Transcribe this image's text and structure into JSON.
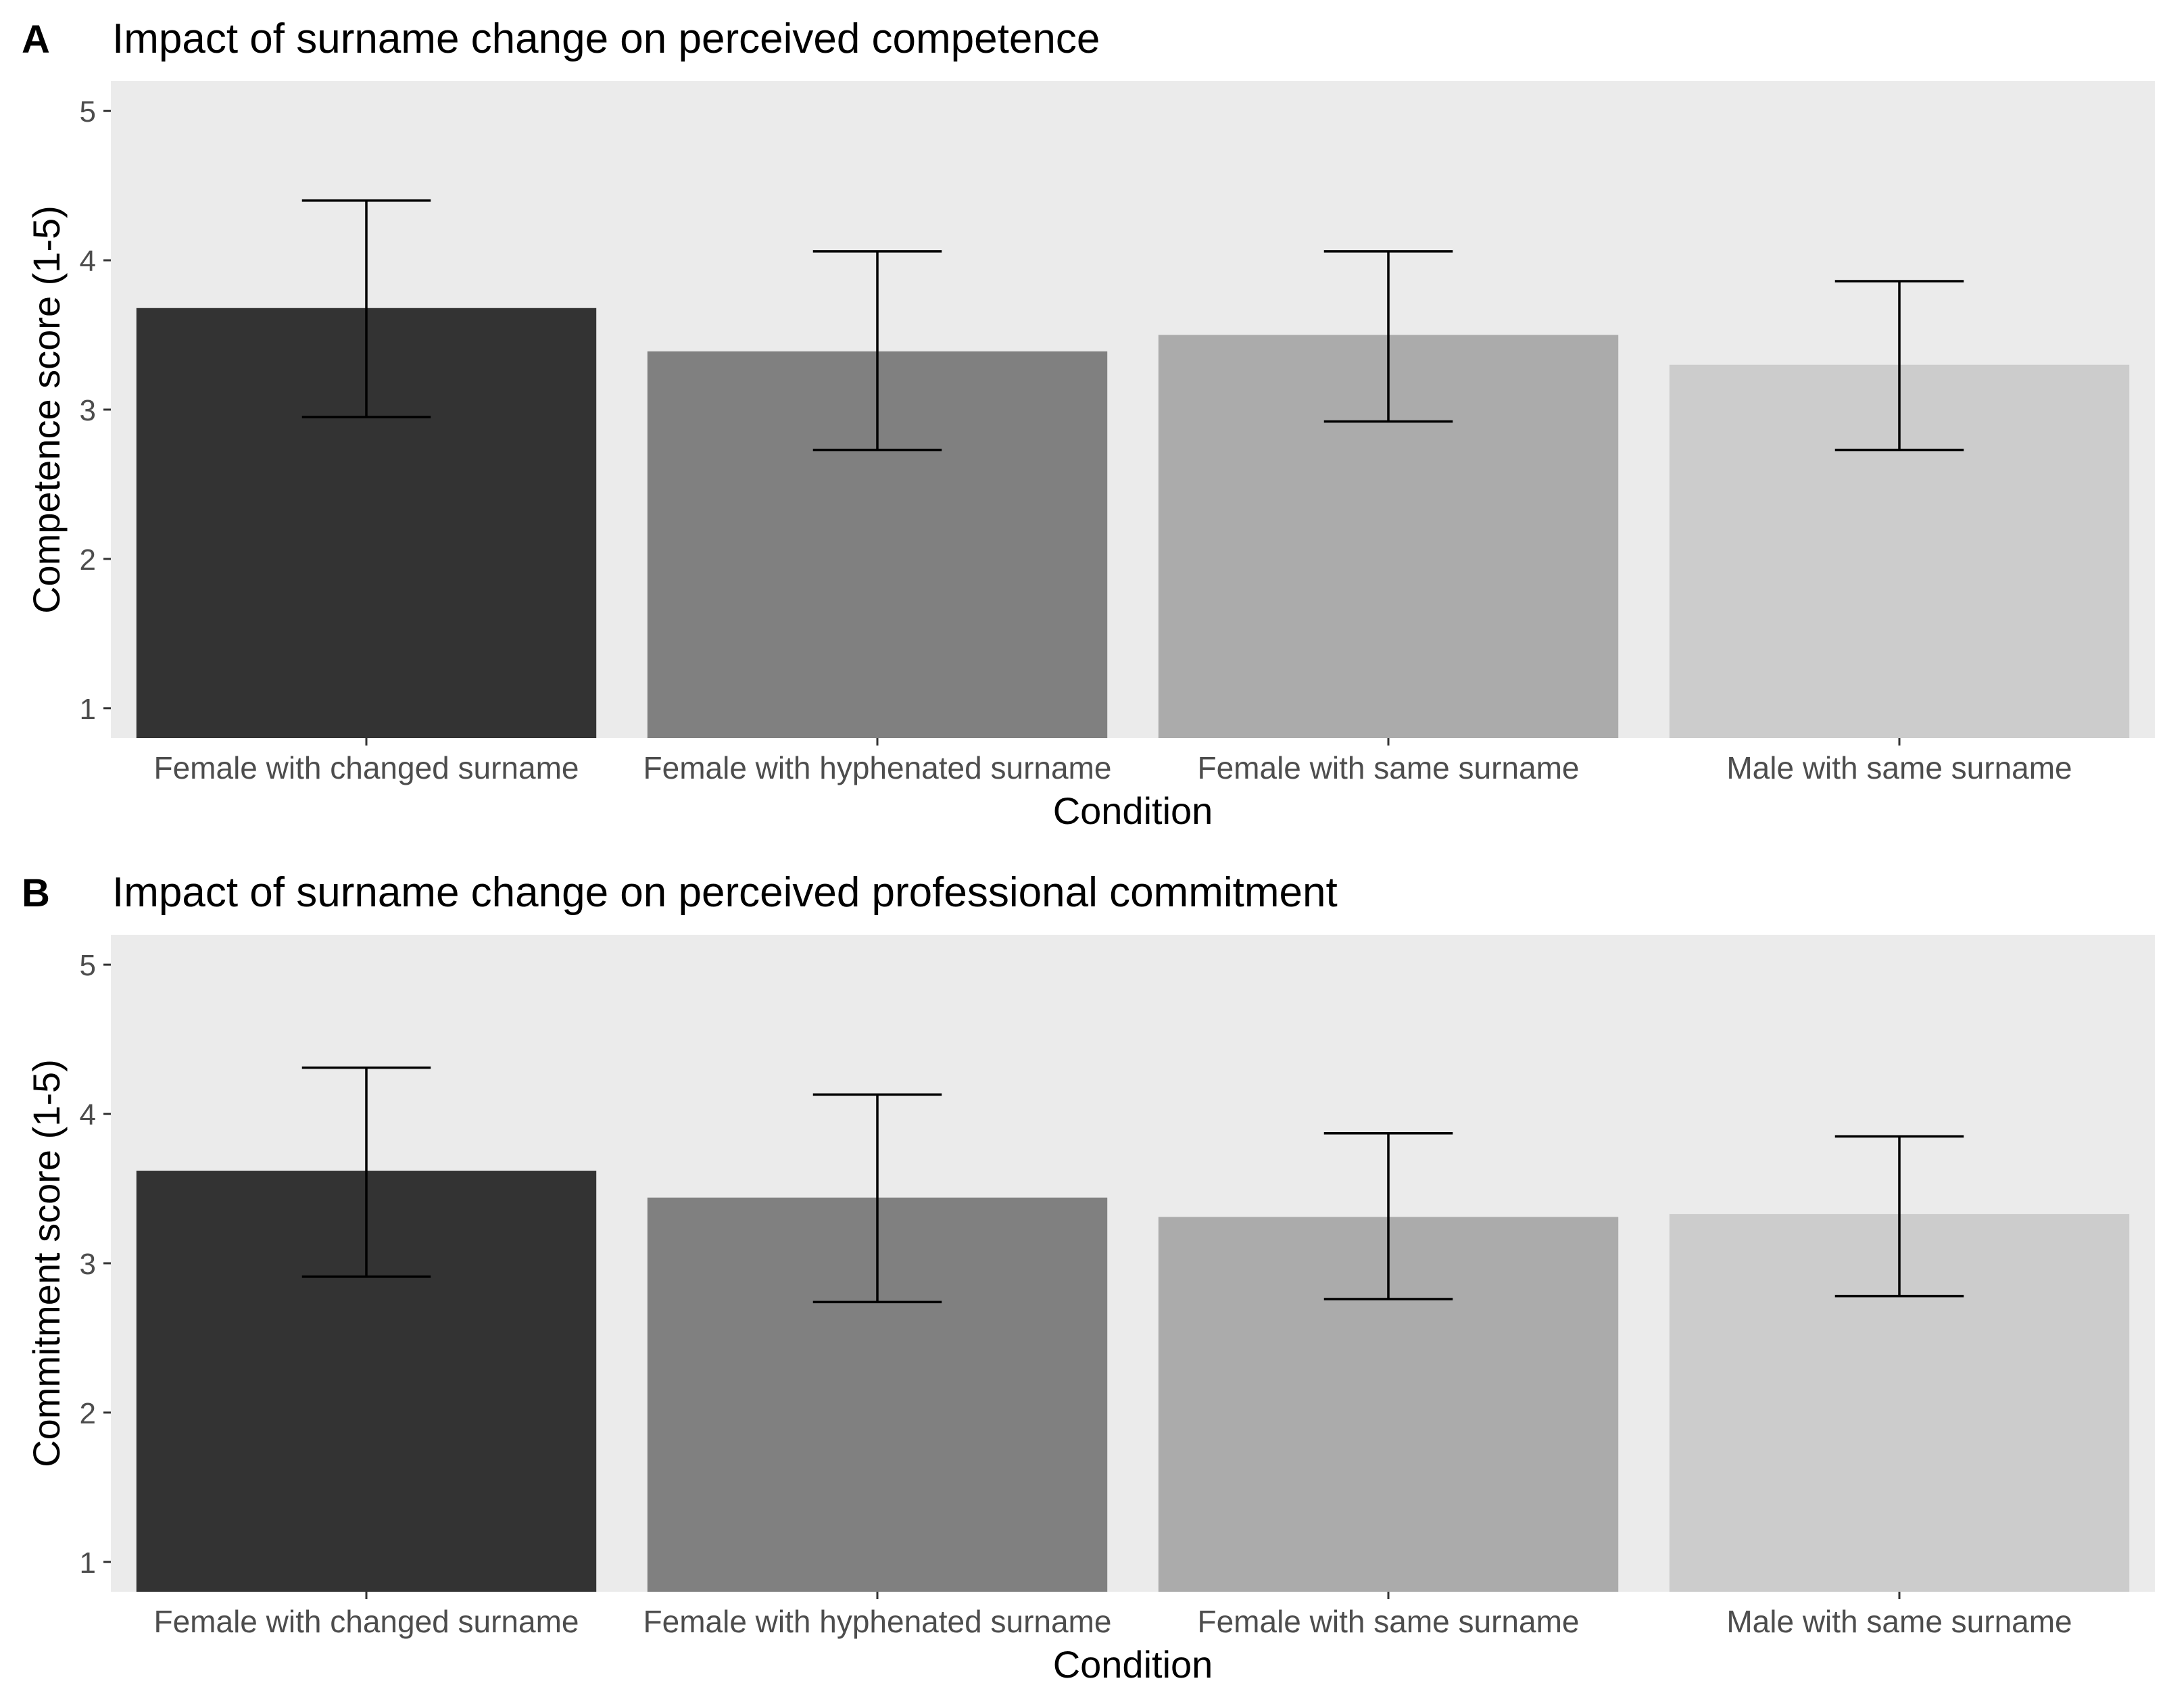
{
  "panels": [
    {
      "letter": "A",
      "title": "Impact of surname change on perceived competence",
      "chart_data": {
        "type": "bar",
        "title": "Impact of surname change on perceived competence",
        "xlabel": "Condition",
        "ylabel": "Competence score (1-5)",
        "categories": [
          "Female with changed surname",
          "Female with hyphenated surname",
          "Female with same surname",
          "Male with same surname"
        ],
        "values": [
          3.68,
          3.39,
          3.5,
          3.3
        ],
        "error_low": [
          2.95,
          2.73,
          2.92,
          2.73
        ],
        "error_high": [
          4.4,
          4.06,
          4.06,
          3.86
        ],
        "ylim": [
          0.8,
          5.2
        ],
        "yticks": [
          1,
          2,
          3,
          4,
          5
        ],
        "grid": false,
        "colors": [
          "#333333",
          "#808080",
          "#ababab",
          "#cccccc"
        ],
        "background": "#ebebeb"
      }
    },
    {
      "letter": "B",
      "title": "Impact of surname change on perceived professional commitment",
      "chart_data": {
        "type": "bar",
        "title": "Impact of surname change on perceived professional commitment",
        "xlabel": "Condition",
        "ylabel": "Commitment score (1-5)",
        "categories": [
          "Female with changed surname",
          "Female with hyphenated surname",
          "Female with same surname",
          "Male with same surname"
        ],
        "values": [
          3.62,
          3.44,
          3.31,
          3.33
        ],
        "error_low": [
          2.91,
          2.74,
          2.76,
          2.78
        ],
        "error_high": [
          4.31,
          4.13,
          3.87,
          3.85
        ],
        "ylim": [
          0.8,
          5.2
        ],
        "yticks": [
          1,
          2,
          3,
          4,
          5
        ],
        "grid": false,
        "colors": [
          "#333333",
          "#808080",
          "#ababab",
          "#cccccc"
        ],
        "background": "#ebebeb"
      }
    }
  ]
}
